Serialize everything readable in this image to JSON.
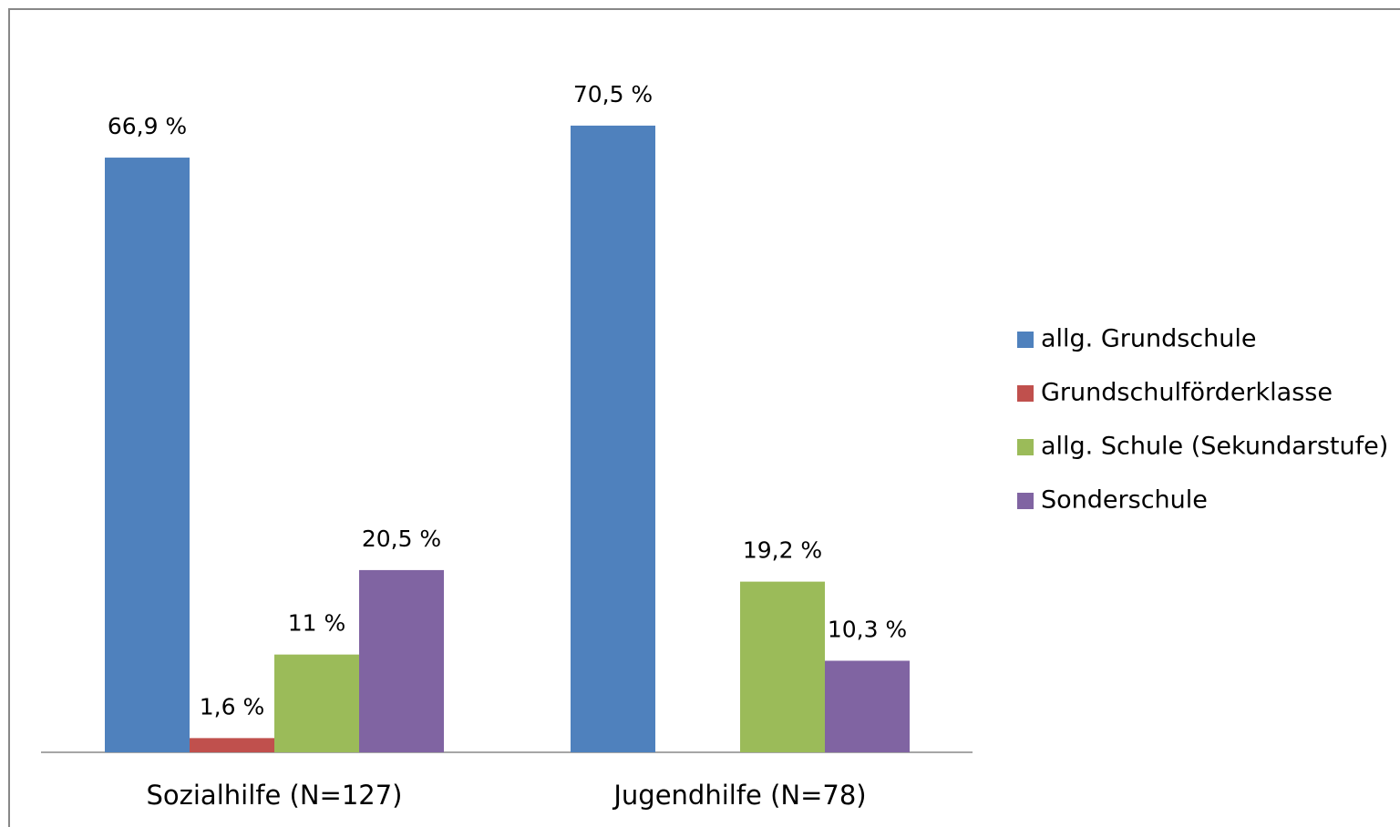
{
  "chart_data": {
    "type": "bar",
    "categories": [
      "Sozialhilfe (N=127)",
      "Jugendhilfe (N=78)"
    ],
    "series": [
      {
        "name": "allg. Grundschule",
        "color": "#4f81bd",
        "values": [
          66.9,
          70.5
        ],
        "value_labels": [
          "66,9 %",
          "70,5 %"
        ]
      },
      {
        "name": "Grundschulförderklasse",
        "color": "#c0504d",
        "values": [
          1.6,
          null
        ],
        "value_labels": [
          "1,6 %",
          null
        ]
      },
      {
        "name": "allg. Schule (Sekundarstufe)",
        "color": "#9bbb59",
        "values": [
          11,
          19.2
        ],
        "value_labels": [
          "11 %",
          "19,2 %"
        ]
      },
      {
        "name": "Sonderschule",
        "color": "#8064a2",
        "values": [
          20.5,
          10.3
        ],
        "value_labels": [
          "20,5 %",
          "10,3 %"
        ]
      }
    ],
    "legend": "right"
  }
}
